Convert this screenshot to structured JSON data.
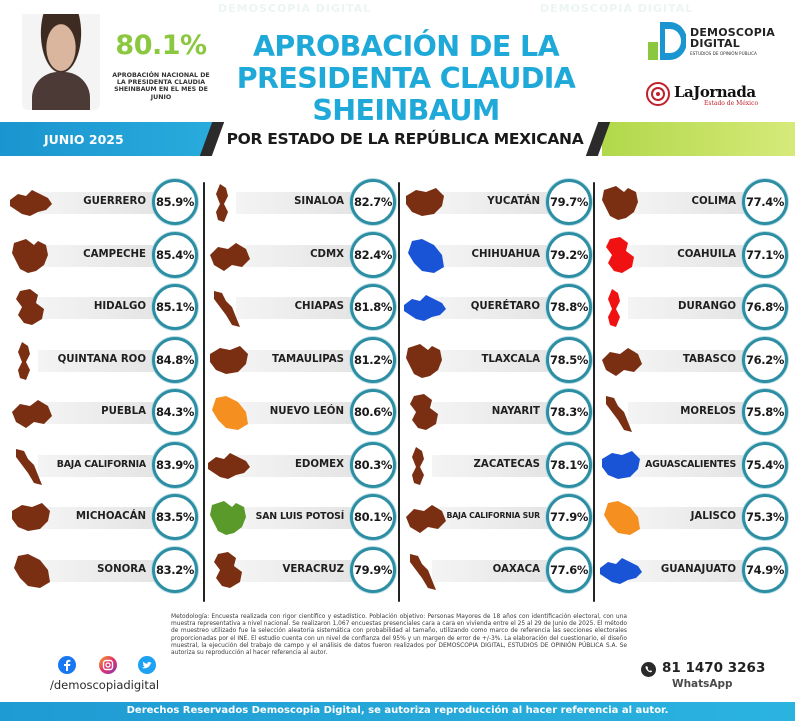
{
  "header": {
    "approval_pct": "80.1%",
    "approval_caption": "APROBACIÓN NACIONAL DE LA PRESIDENTA CLAUDIA SHEINBAUM EN EL MES DE JUNIO",
    "title_line1": "APROBACIÓN DE LA",
    "title_line2": "PRESIDENTA CLAUDIA SHEINBAUM",
    "watermark_text": "DEMOSCOPIA DIGITAL",
    "logo_demoscopia_line1": "DEMOSCOPIA",
    "logo_demoscopia_line2": "DIGITAL",
    "logo_demoscopia_sub": "ESTUDIOS DE OPINIÓN PÚBLICA",
    "logo_jornada": "LaJornada",
    "logo_jornada_sub": "Estado de México"
  },
  "subheader": {
    "date_label": "JUNIO 2025",
    "subtitle": "POR ESTADO DE LA REPÚBLICA MEXICANA"
  },
  "colors": {
    "brown": "#7a2e12",
    "blue": "#1a54d6",
    "red": "#f01212",
    "orange": "#f59020",
    "green": "#5a9a2a",
    "ring": "#2d8ea3",
    "title_blue": "#1ea9d8",
    "lime": "#8cc83f"
  },
  "chart_data": {
    "type": "table",
    "columns": [
      [
        {
          "state": "GUERRERO",
          "value": "85.9%",
          "color": "brown"
        },
        {
          "state": "CAMPECHE",
          "value": "85.4%",
          "color": "brown"
        },
        {
          "state": "HIDALGO",
          "value": "85.1%",
          "color": "brown"
        },
        {
          "state": "QUINTANA ROO",
          "value": "84.8%",
          "color": "brown"
        },
        {
          "state": "PUEBLA",
          "value": "84.3%",
          "color": "brown"
        },
        {
          "state": "BAJA CALIFORNIA",
          "value": "83.9%",
          "color": "brown"
        },
        {
          "state": "MICHOACÁN",
          "value": "83.5%",
          "color": "brown"
        },
        {
          "state": "SONORA",
          "value": "83.2%",
          "color": "brown"
        }
      ],
      [
        {
          "state": "SINALOA",
          "value": "82.7%",
          "color": "brown"
        },
        {
          "state": "CDMX",
          "value": "82.4%",
          "color": "brown"
        },
        {
          "state": "CHIAPAS",
          "value": "81.8%",
          "color": "brown"
        },
        {
          "state": "TAMAULIPAS",
          "value": "81.2%",
          "color": "brown"
        },
        {
          "state": "NUEVO LEÓN",
          "value": "80.6%",
          "color": "orange"
        },
        {
          "state": "EDOMEX",
          "value": "80.3%",
          "color": "brown"
        },
        {
          "state": "SAN LUIS POTOSÍ",
          "value": "80.1%",
          "color": "green"
        },
        {
          "state": "VERACRUZ",
          "value": "79.9%",
          "color": "brown"
        }
      ],
      [
        {
          "state": "YUCATÁN",
          "value": "79.7%",
          "color": "brown"
        },
        {
          "state": "CHIHUAHUA",
          "value": "79.2%",
          "color": "blue"
        },
        {
          "state": "QUERÉTARO",
          "value": "78.8%",
          "color": "blue"
        },
        {
          "state": "TLAXCALA",
          "value": "78.5%",
          "color": "brown"
        },
        {
          "state": "NAYARIT",
          "value": "78.3%",
          "color": "brown"
        },
        {
          "state": "ZACATECAS",
          "value": "78.1%",
          "color": "brown"
        },
        {
          "state": "BAJA CALIFORNIA SUR",
          "value": "77.9%",
          "color": "brown"
        },
        {
          "state": "OAXACA",
          "value": "77.6%",
          "color": "brown"
        }
      ],
      [
        {
          "state": "COLIMA",
          "value": "77.4%",
          "color": "brown"
        },
        {
          "state": "COAHUILA",
          "value": "77.1%",
          "color": "red"
        },
        {
          "state": "DURANGO",
          "value": "76.8%",
          "color": "red"
        },
        {
          "state": "TABASCO",
          "value": "76.2%",
          "color": "brown"
        },
        {
          "state": "MORELOS",
          "value": "75.8%",
          "color": "brown"
        },
        {
          "state": "AGUASCALIENTES",
          "value": "75.4%",
          "color": "blue"
        },
        {
          "state": "JALISCO",
          "value": "75.3%",
          "color": "orange"
        },
        {
          "state": "GUANAJUATO",
          "value": "74.9%",
          "color": "blue"
        }
      ]
    ]
  },
  "footer": {
    "methodology": "Metodología: Encuesta realizada con rigor científico y estadístico. Población objetivo: Personas Mayores de 18 años con identificación electoral, con una muestra representativa a nivel nacional. Se realizaron 1,067 encuestas presenciales cara a cara en vivienda entre el 25 al 29 de Junio de 2025. El método de muestreo utilizado fue la selección aleatoria sistemática con probabilidad al tamaño, utilizando como marco de referencia las secciones electorales proporcionadas por el INE. El estudio cuenta con un nivel de confianza del 95% y un margen de error de +/-3%. La elaboración del cuestionario, el diseño muestral, la ejecución del trabajo de campo y el análisis de datos fueron realizados por DEMOSCOPIA DIGITAL, ESTUDIOS DE OPINIÓN PÚBLICA S.A. Se autoriza su reproducción al hacer referencia al autor.",
    "social_handle": "/demoscopiadigital",
    "phone": "81 1470 3263",
    "whatsapp_label": "WhatsApp",
    "rights": "Derechos Reservados Demoscopia Digital, se autoriza reproducción al hacer referencia al autor."
  }
}
